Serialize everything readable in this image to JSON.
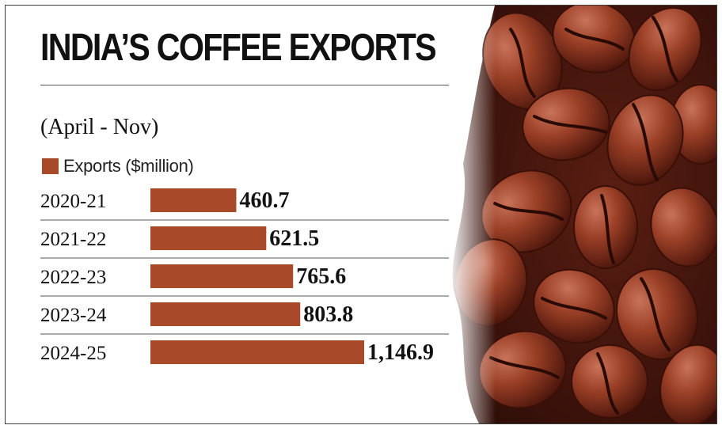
{
  "colors": {
    "bar": "#a84a2a",
    "rule": "#555555"
  },
  "chart_data": {
    "type": "bar",
    "orientation": "horizontal",
    "title": "INDIA’S COFFEE EXPORTS",
    "subtitle": "(April - Nov)",
    "legend": "Exports ($million)",
    "categories": [
      "2020-21",
      "2021-22",
      "2022-23",
      "2023-24",
      "2024-25"
    ],
    "values": [
      460.7,
      621.5,
      765.6,
      803.8,
      1146.9
    ],
    "value_labels": [
      "460.7",
      "621.5",
      "765.6",
      "803.8",
      "1,146.9"
    ],
    "xlim": [
      0,
      1146.9
    ],
    "grid": false
  }
}
